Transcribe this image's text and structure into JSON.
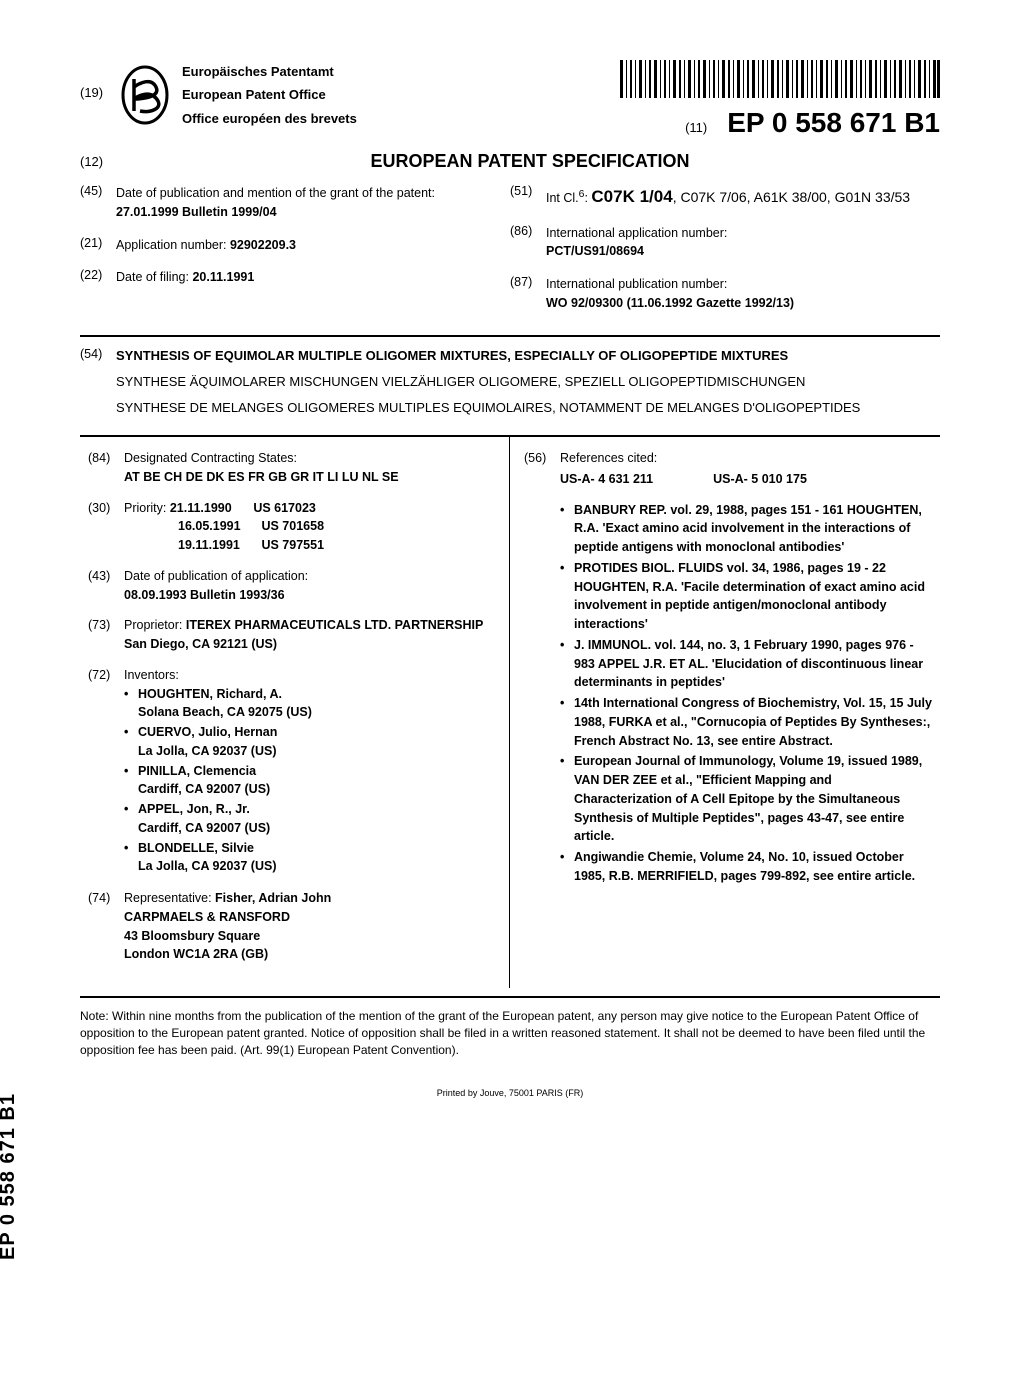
{
  "header": {
    "field19": "(19)",
    "office_de": "Europäisches Patentamt",
    "office_en": "European Patent Office",
    "office_fr": "Office européen des brevets",
    "field11": "(11)",
    "pub_number": "EP 0 558 671 B1"
  },
  "doc": {
    "field12": "(12)",
    "title": "EUROPEAN PATENT SPECIFICATION"
  },
  "top_left": {
    "f45_num": "(45)",
    "f45_label": "Date of publication and mention of the grant of the patent:",
    "f45_val": "27.01.1999  Bulletin 1999/04",
    "f21_num": "(21)",
    "f21_label": "Application number: ",
    "f21_val": "92902209.3",
    "f22_num": "(22)",
    "f22_label": "Date of filing: ",
    "f22_val": "20.11.1991"
  },
  "top_right": {
    "f51_num": "(51)",
    "f51_label": "Int Cl.",
    "f51_sup": "6",
    "f51_main": "C07K 1/04",
    "f51_rest": ", C07K 7/06, A61K 38/00, G01N 33/53",
    "f86_num": "(86)",
    "f86_label": "International application number:",
    "f86_val": "PCT/US91/08694",
    "f87_num": "(87)",
    "f87_label": "International publication number:",
    "f87_val": "WO 92/09300 (11.06.1992 Gazette 1992/13)"
  },
  "s54": {
    "num": "(54)",
    "title_en": "SYNTHESIS OF EQUIMOLAR MULTIPLE OLIGOMER MIXTURES, ESPECIALLY OF OLIGOPEPTIDE MIXTURES",
    "title_de": "SYNTHESE ÄQUIMOLARER MISCHUNGEN VIELZÄHLIGER OLIGOMERE, SPEZIELL OLIGOPEPTIDMISCHUNGEN",
    "title_fr": "SYNTHESE DE MELANGES OLIGOMERES MULTIPLES EQUIMOLAIRES, NOTAMMENT DE MELANGES D'OLIGOPEPTIDES"
  },
  "main_left": {
    "f84_num": "(84)",
    "f84_label": "Designated Contracting States:",
    "f84_val": "AT BE CH DE DK ES FR GB GR IT LI LU NL SE",
    "f30_num": "(30)",
    "f30_label": "Priority: ",
    "prio": [
      {
        "date": "21.11.1990",
        "rest": "US 617023"
      },
      {
        "date": "16.05.1991",
        "rest": "US 701658"
      },
      {
        "date": "19.11.1991",
        "rest": "US 797551"
      }
    ],
    "f43_num": "(43)",
    "f43_label": "Date of publication of application:",
    "f43_val": "08.09.1993  Bulletin 1993/36",
    "f73_num": "(73)",
    "f73_label": "Proprietor: ",
    "f73_name": "ITEREX PHARMACEUTICALS LTD. PARTNERSHIP",
    "f73_addr": "San Diego, CA 92121 (US)",
    "f72_num": "(72)",
    "f72_label": "Inventors:",
    "inventors": [
      {
        "name": "HOUGHTEN, Richard, A.",
        "addr": "Solana Beach, CA 92075 (US)"
      },
      {
        "name": "CUERVO, Julio, Hernan",
        "addr": "La Jolla, CA 92037 (US)"
      },
      {
        "name": "PINILLA, Clemencia",
        "addr": "Cardiff, CA 92007 (US)"
      },
      {
        "name": "APPEL, Jon, R., Jr.",
        "addr": "Cardiff, CA 92007 (US)"
      },
      {
        "name": "BLONDELLE, Silvie",
        "addr": "La Jolla, CA 92037 (US)"
      }
    ],
    "f74_num": "(74)",
    "f74_label": "Representative: ",
    "f74_name": "Fisher, Adrian John",
    "f74_lines": [
      "CARPMAELS & RANSFORD",
      "43 Bloomsbury Square",
      "London WC1A 2RA (GB)"
    ]
  },
  "main_right": {
    "f56_num": "(56)",
    "f56_label": "References cited:",
    "patents": [
      "US-A- 4 631 211",
      "US-A- 5 010 175"
    ],
    "refs": [
      "BANBURY REP. vol. 29, 1988, pages 151 - 161 HOUGHTEN, R.A. 'Exact amino acid involvement in the interactions of peptide antigens with monoclonal antibodies'",
      "PROTIDES BIOL. FLUIDS vol. 34, 1986, pages 19 - 22 HOUGHTEN, R.A. 'Facile determination of exact amino acid involvement in peptide antigen/monoclonal antibody interactions'",
      "J. IMMUNOL. vol. 144, no. 3, 1 February 1990, pages 976 - 983 APPEL J.R. ET AL. 'Elucidation of discontinuous linear determinants in peptides'",
      "14th International Congress of Biochemistry, Vol. 15, 15 July 1988, FURKA et al., \"Cornucopia of Peptides By Syntheses:, French Abstract No. 13, see entire Abstract.",
      "European Journal of Immunology, Volume 19, issued 1989, VAN DER ZEE et al., \"Efficient Mapping and Characterization of A Cell Epitope by the Simultaneous Synthesis of Multiple Peptides\", pages 43-47, see entire article.",
      "Angiwandie Chemie, Volume 24, No. 10, issued October 1985, R.B. MERRIFIELD, pages 799-892, see entire article."
    ]
  },
  "note": "Note: Within nine months from the publication of the mention of the grant of the European patent, any person may give notice to the European Patent Office of opposition to the European patent granted. Notice of opposition shall be filed in a written reasoned statement. It shall not be deemed to have been filed until the opposition fee has been paid. (Art. 99(1) European Patent Convention).",
  "side_label": "EP 0 558 671 B1",
  "footer": "Printed by Jouve, 75001 PARIS (FR)"
}
